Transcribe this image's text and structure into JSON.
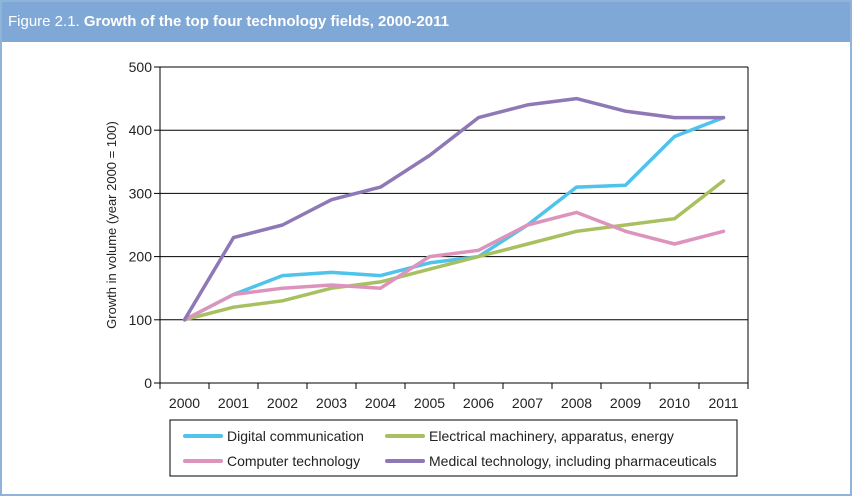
{
  "figure": {
    "label": "Figure 2.1.",
    "title": "Growth of the top four technology fields, 2000-2011"
  },
  "colors": {
    "header_bg": "#7fa8d6",
    "frame_border": "#8fb3d9"
  },
  "chart_data": {
    "type": "line",
    "title": "Growth of the top four technology fields, 2000-2011",
    "xlabel": "",
    "ylabel": "Growth in volume (year 2000 = 100)",
    "x": [
      "2000",
      "2001",
      "2002",
      "2003",
      "2004",
      "2005",
      "2006",
      "2007",
      "2008",
      "2009",
      "2010",
      "2011"
    ],
    "ylim": [
      0,
      500
    ],
    "yticks": [
      0,
      100,
      200,
      300,
      400,
      500
    ],
    "grid": "horizontal",
    "legend_position": "bottom",
    "series": [
      {
        "name": "Digital communication",
        "color": "#4fc3ec",
        "values": [
          100,
          140,
          170,
          175,
          170,
          190,
          200,
          250,
          310,
          313,
          390,
          420
        ]
      },
      {
        "name": "Electrical machinery, apparatus, energy",
        "color": "#a8c060",
        "values": [
          100,
          120,
          130,
          150,
          160,
          180,
          200,
          220,
          240,
          250,
          260,
          320
        ]
      },
      {
        "name": "Computer technology",
        "color": "#dc94bc",
        "values": [
          100,
          140,
          150,
          155,
          150,
          200,
          210,
          250,
          270,
          240,
          220,
          240
        ]
      },
      {
        "name": "Medical technology, including pharmaceuticals",
        "color": "#8e79b6",
        "values": [
          100,
          230,
          250,
          290,
          310,
          360,
          420,
          440,
          450,
          430,
          420,
          420
        ]
      }
    ]
  }
}
